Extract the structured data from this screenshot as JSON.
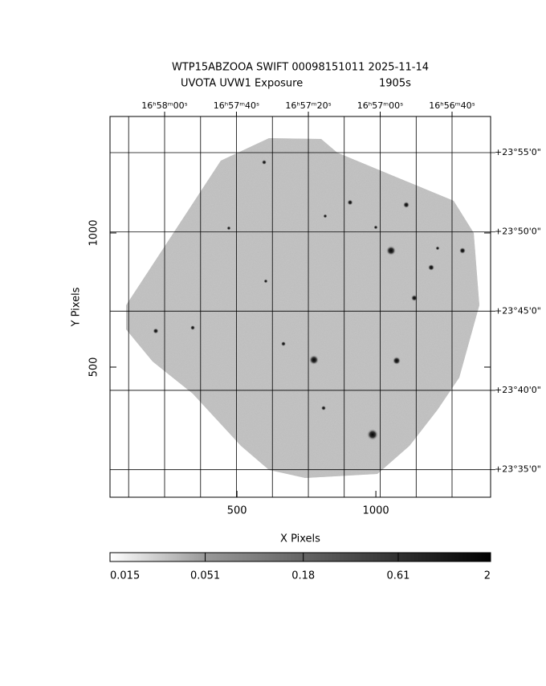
{
  "chart_data": {
    "type": "image",
    "title": "WTP15ABZOOA SWIFT 00098151011 2025-11-14",
    "subtitle": "UVOTA UVW1 Exposure",
    "exposure": "1905s",
    "x_label": "X Pixels",
    "y_label": "Y Pixels",
    "xlim": [
      43,
      1413
    ],
    "ylim": [
      15,
      1434
    ],
    "xticks": [
      500,
      1000
    ],
    "yticks": [
      500,
      1000
    ],
    "ra_lim": [
      254.5633,
      254.122
    ],
    "ra_ticks": [
      {
        "value": 254.5,
        "label": "16ʰ58ᵐ00ˢ"
      },
      {
        "value": 254.4167,
        "label": "16ʰ57ᵐ40ˢ"
      },
      {
        "value": 254.3333,
        "label": "16ʰ57ᵐ20ˢ"
      },
      {
        "value": 254.25,
        "label": "16ʰ57ᵐ00ˢ"
      },
      {
        "value": 254.1667,
        "label": "16ʰ56ᵐ40ˢ"
      }
    ],
    "ra_grid": [
      254.5417,
      254.5,
      254.4583,
      254.4167,
      254.375,
      254.3333,
      254.2917,
      254.25,
      254.2083,
      254.1667
    ],
    "dec_lim": [
      23.5543,
      23.9547
    ],
    "dec_ticks": [
      {
        "value": 23.9167,
        "label": "+23°55'0\""
      },
      {
        "value": 23.8333,
        "label": "+23°50'0\""
      },
      {
        "value": 23.75,
        "label": "+23°45'0\""
      },
      {
        "value": 23.6667,
        "label": "+23°40'0\""
      },
      {
        "value": 23.5833,
        "label": "+23°35'0\""
      }
    ],
    "colorbar": {
      "log": true,
      "lim": [
        0.015,
        2
      ],
      "ticks": [
        0.015,
        0.051,
        0.18,
        0.61,
        2
      ]
    }
  }
}
